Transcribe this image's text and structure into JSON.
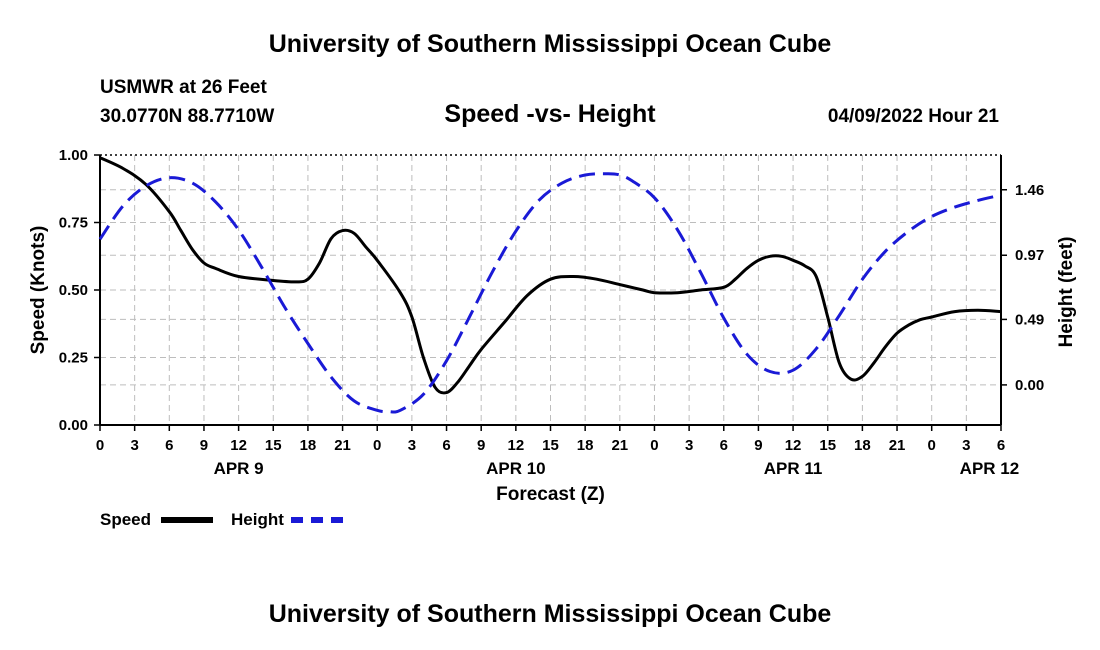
{
  "header": {
    "title": "University of Southern Mississippi Ocean Cube",
    "station": "USMWR at 26 Feet",
    "coords": "30.0770N  88.7710W",
    "subtitle": "Speed -vs- Height",
    "datetime": "04/09/2022 Hour 21"
  },
  "footer": {
    "title": "University of Southern Mississippi Ocean Cube"
  },
  "legend": {
    "speed_label": "Speed",
    "height_label": "Height"
  },
  "chart_data": {
    "type": "line",
    "xlabel": "Forecast (Z)",
    "ylabel": "Speed (Knots)",
    "y2label": "Height (feet)",
    "xlim": [
      0,
      78
    ],
    "ylim": [
      0,
      1
    ],
    "y2lim": [
      -0.3,
      1.72
    ],
    "x_ticks": [
      0,
      3,
      6,
      9,
      12,
      15,
      18,
      21,
      24,
      27,
      30,
      33,
      36,
      39,
      42,
      45,
      48,
      51,
      54,
      57,
      60,
      63,
      66,
      69,
      72,
      75,
      78
    ],
    "x_tick_labels": [
      "0",
      "3",
      "6",
      "9",
      "12",
      "15",
      "18",
      "21",
      "0",
      "3",
      "6",
      "9",
      "12",
      "15",
      "18",
      "21",
      "0",
      "3",
      "6",
      "9",
      "12",
      "15",
      "18",
      "21",
      "0",
      "3",
      "6"
    ],
    "date_labels": [
      {
        "x": 12,
        "label": "APR 9"
      },
      {
        "x": 36,
        "label": "APR 10"
      },
      {
        "x": 60,
        "label": "APR 11"
      },
      {
        "x": 77,
        "label": "APR 12"
      }
    ],
    "y_ticks": [
      0,
      0.25,
      0.5,
      0.75,
      1.0
    ],
    "y_tick_labels": [
      "0.00",
      "0.25",
      "0.50",
      "0.75",
      "1.00"
    ],
    "y2_ticks": [
      0,
      0.49,
      0.97,
      1.46
    ],
    "y2_tick_labels": [
      "0.00",
      "0.49",
      "0.97",
      "1.46"
    ],
    "colors": {
      "speed": "#000000",
      "height": "#1a1ad6",
      "grid": "#bdbdbd"
    },
    "series": [
      {
        "name": "Speed",
        "axis": "left",
        "x": [
          0,
          2,
          4,
          6,
          7,
          8,
          9,
          10,
          12,
          15,
          17,
          18,
          19,
          20,
          21,
          22,
          23,
          24,
          26,
          27,
          28,
          29,
          30,
          31,
          32,
          33,
          35,
          37,
          39,
          41,
          43,
          45,
          47,
          48,
          50,
          52,
          54,
          55,
          56,
          57,
          58,
          59,
          60,
          61,
          62,
          63,
          64,
          65,
          66,
          67,
          68,
          69,
          70,
          71,
          72,
          74,
          76,
          78
        ],
        "values": [
          0.99,
          0.95,
          0.89,
          0.79,
          0.72,
          0.65,
          0.6,
          0.58,
          0.55,
          0.535,
          0.53,
          0.54,
          0.6,
          0.69,
          0.72,
          0.71,
          0.66,
          0.61,
          0.49,
          0.4,
          0.25,
          0.14,
          0.12,
          0.16,
          0.22,
          0.28,
          0.38,
          0.48,
          0.54,
          0.55,
          0.54,
          0.52,
          0.5,
          0.49,
          0.49,
          0.5,
          0.51,
          0.54,
          0.58,
          0.61,
          0.625,
          0.625,
          0.61,
          0.59,
          0.55,
          0.4,
          0.23,
          0.17,
          0.18,
          0.23,
          0.29,
          0.34,
          0.37,
          0.39,
          0.4,
          0.42,
          0.425,
          0.42
        ]
      },
      {
        "name": "Height",
        "axis": "right",
        "x": [
          0,
          2,
          4,
          6,
          8,
          10,
          12,
          14,
          16,
          18,
          20,
          22,
          24,
          25,
          26,
          28,
          30,
          32,
          34,
          36,
          38,
          40,
          42,
          44,
          45,
          46,
          48,
          50,
          52,
          54,
          56,
          58,
          60,
          62,
          64,
          66,
          68,
          70,
          72,
          74,
          76,
          78
        ],
        "values": [
          1.09,
          1.34,
          1.49,
          1.55,
          1.51,
          1.37,
          1.16,
          0.88,
          0.58,
          0.31,
          0.06,
          -0.12,
          -0.19,
          -0.2,
          -0.19,
          -0.07,
          0.18,
          0.51,
          0.85,
          1.15,
          1.38,
          1.51,
          1.57,
          1.58,
          1.57,
          1.53,
          1.4,
          1.16,
          0.84,
          0.5,
          0.23,
          0.1,
          0.11,
          0.27,
          0.52,
          0.79,
          1.0,
          1.15,
          1.26,
          1.33,
          1.38,
          1.42
        ]
      }
    ]
  }
}
